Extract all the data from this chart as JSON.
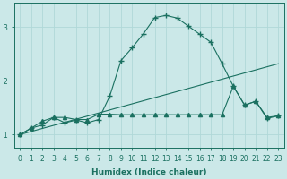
{
  "xlabel": "Humidex (Indice chaleur)",
  "background_color": "#cbe8e8",
  "grid_color": "#b0d8d8",
  "line_color": "#1a7060",
  "xlim": [
    -0.5,
    23.5
  ],
  "ylim": [
    0.75,
    3.45
  ],
  "yticks": [
    1,
    2,
    3
  ],
  "xticks": [
    0,
    1,
    2,
    3,
    4,
    5,
    6,
    7,
    8,
    9,
    10,
    11,
    12,
    13,
    14,
    15,
    16,
    17,
    18,
    19,
    20,
    21,
    22,
    23
  ],
  "line1_x": [
    0,
    1,
    2,
    3,
    4,
    5,
    6,
    7,
    8,
    9,
    10,
    11,
    12,
    13,
    14,
    15,
    16,
    17,
    18,
    19,
    20,
    21,
    22,
    23
  ],
  "line1_y": [
    1.0,
    1.12,
    1.18,
    1.32,
    1.22,
    1.27,
    1.22,
    1.28,
    1.72,
    2.38,
    2.62,
    2.88,
    3.18,
    3.22,
    3.17,
    3.02,
    2.87,
    2.72,
    2.32,
    1.9,
    1.55,
    1.62,
    1.3,
    1.35
  ],
  "line2_x": [
    0,
    23
  ],
  "line2_y": [
    1.0,
    2.32
  ],
  "line3_x": [
    0,
    1,
    2,
    3,
    4,
    5,
    6,
    7,
    8,
    9,
    10,
    11,
    12,
    13,
    14,
    15,
    16,
    17,
    18,
    19,
    20,
    21,
    22,
    23
  ],
  "line3_y": [
    1.0,
    1.12,
    1.25,
    1.32,
    1.32,
    1.28,
    1.28,
    1.38,
    1.38,
    1.37,
    1.37,
    1.37,
    1.37,
    1.37,
    1.37,
    1.37,
    1.37,
    1.37,
    1.37,
    1.9,
    1.55,
    1.62,
    1.32,
    1.35
  ]
}
